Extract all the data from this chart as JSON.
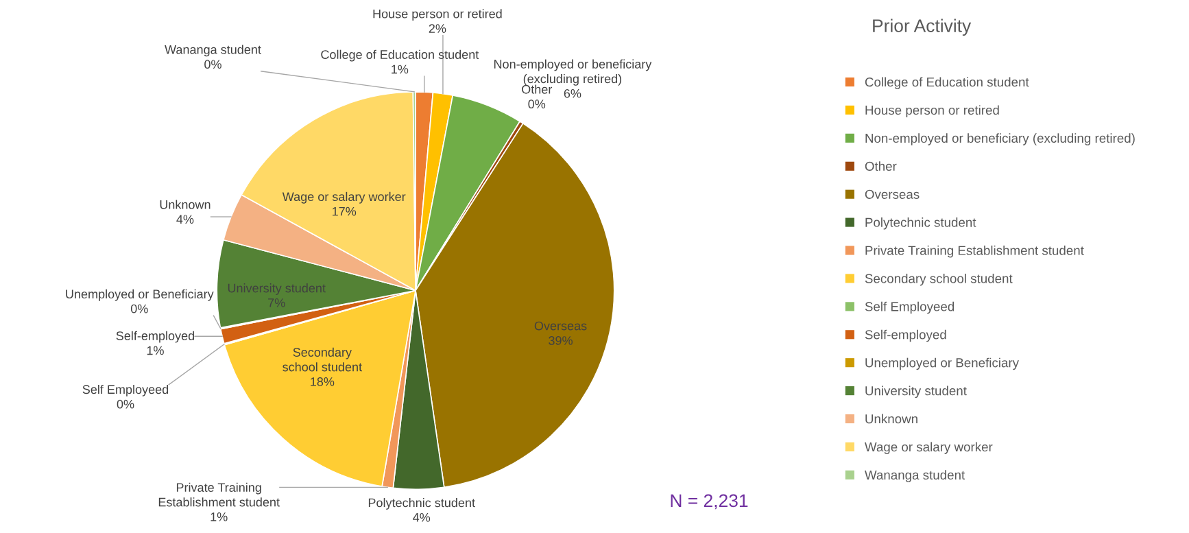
{
  "chart_data": {
    "type": "pie",
    "title": "Prior Activity",
    "categories": [
      "College of Education student",
      "House person or retired",
      "Non-employed or beneficiary (excluding retired)",
      "Other",
      "Overseas",
      "Polytechnic student",
      "Private Training Establishment student",
      "Secondary school student",
      "Self Employeed",
      "Self-employed",
      "Unemployed or Beneficiary",
      "University student",
      "Unknown",
      "Wage or salary worker",
      "Wananga student"
    ],
    "values": [
      1.4,
      1.6,
      5.8,
      0.3,
      38.6,
      4.1,
      0.9,
      17.9,
      0.1,
      1.2,
      0.1,
      7.1,
      3.9,
      16.8,
      0.2
    ],
    "value_labels": [
      "1%",
      "2%",
      "6%",
      "0%",
      "39%",
      "4%",
      "1%",
      "18%",
      "0%",
      "1%",
      "0%",
      "7%",
      "4%",
      "17%",
      "0%"
    ],
    "colors": [
      "#ed7d31",
      "#ffc000",
      "#70ad47",
      "#9e480e",
      "#997300",
      "#43682b",
      "#f1975a",
      "#ffcd33",
      "#8cc168",
      "#d26012",
      "#cc9a00",
      "#548235",
      "#f4b183",
      "#ffd966",
      "#a9d18e"
    ],
    "legend": "right",
    "annotations": [
      "N = 2,231"
    ]
  }
}
